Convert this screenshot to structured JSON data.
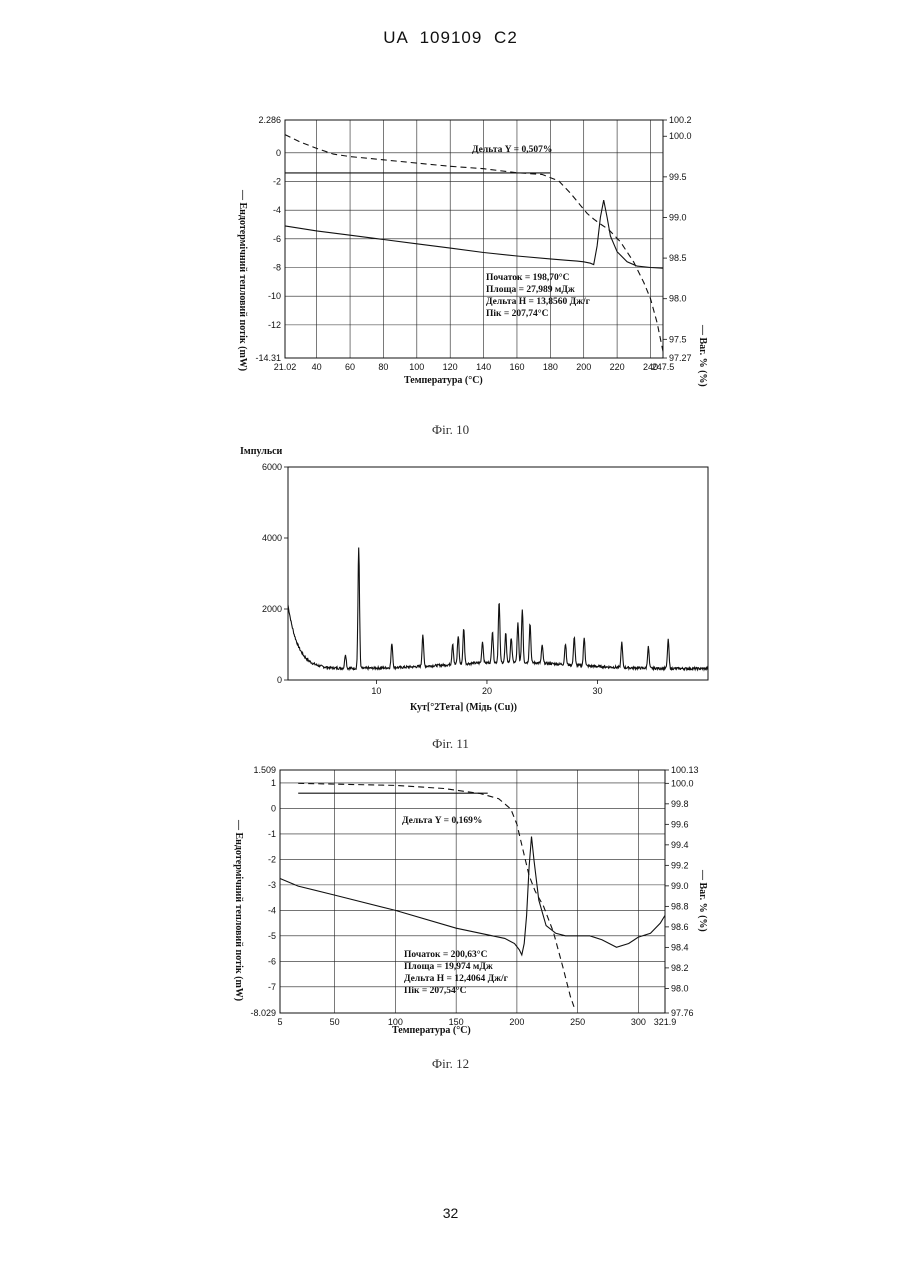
{
  "header": "UA   109109   C2",
  "page_number": "32",
  "figures": [
    {
      "caption": "Фіг. 10",
      "y_left_label": "—  Ендотермічний тепловий потік (mW)",
      "y_right_label": "—  Ваг. % (%)",
      "x_label": "Температура (°C)",
      "delta_label": "Дельта Y = 0,507%",
      "annotation": [
        "Початок = 198,70°C",
        "Площа = 27,989 мДж",
        "Дельта H = 13,8560 Дж/г",
        "Пік = 207,74°C"
      ]
    },
    {
      "caption": "Фіг. 11",
      "y_label": "Імпульси",
      "x_label": "Кут[°2Тета] (Мідь (Cu))"
    },
    {
      "caption": "Фіг. 12",
      "y_left_label": "—  Ендотермічний тепловий потік (mW)",
      "y_right_label": "—  Ваг. % (%)",
      "x_label": "Температура (°C)",
      "delta_label": "Дельта Y = 0,169%",
      "annotation": [
        "Початок = 200,63°C",
        "Площа = 19,974 мДж",
        "Дельта H = 12,4064 Дж/г",
        "Пік = 207,54°C"
      ]
    }
  ],
  "chart_data": [
    {
      "type": "line",
      "x_ticks": [
        "21.02",
        "40",
        "60",
        "80",
        "100",
        "120",
        "140",
        "160",
        "180",
        "200",
        "220",
        "240",
        "247.5"
      ],
      "y_left_ticks": [
        "2.286",
        "0",
        "-2",
        "-4",
        "-6",
        "-8",
        "-10",
        "-12",
        "-14.31"
      ],
      "y_right_ticks": [
        "100.2",
        "100.0",
        "99.5",
        "99.0",
        "98.5",
        "98.0",
        "97.5",
        "97.27"
      ],
      "xlim": [
        21.02,
        247.5
      ],
      "ylim_left": [
        -14.31,
        2.286
      ],
      "ylim_right": [
        97.27,
        100.2
      ],
      "series": [
        {
          "name": "Ендотермічний тепловий потік",
          "x": [
            21.02,
            40,
            60,
            80,
            100,
            120,
            140,
            160,
            180,
            190,
            196,
            200,
            204,
            206,
            208,
            210,
            212,
            214,
            216,
            220,
            226,
            232,
            240,
            247.5
          ],
          "y": [
            -5.1,
            -5.45,
            -5.75,
            -6.05,
            -6.35,
            -6.65,
            -6.95,
            -7.2,
            -7.4,
            -7.5,
            -7.55,
            -7.6,
            -7.7,
            -7.8,
            -6.5,
            -4.5,
            -3.3,
            -4.5,
            -5.8,
            -6.9,
            -7.6,
            -7.9,
            -8.0,
            -8.05
          ]
        },
        {
          "name": "Ваг. %",
          "x": [
            21.02,
            30,
            40,
            50,
            60,
            80,
            100,
            120,
            140,
            160,
            175,
            185,
            192,
            198,
            202,
            206,
            210,
            215,
            222,
            230,
            236,
            240,
            244,
            247.5
          ],
          "y": [
            100.02,
            99.93,
            99.85,
            99.78,
            99.75,
            99.71,
            99.67,
            99.63,
            99.6,
            99.55,
            99.53,
            99.45,
            99.3,
            99.15,
            99.05,
            98.98,
            98.92,
            98.85,
            98.7,
            98.45,
            98.2,
            98.0,
            97.7,
            97.35
          ]
        }
      ],
      "step_line": {
        "x": [
          21.02,
          180
        ],
        "y": [
          -1.4,
          -1.4
        ]
      }
    },
    {
      "type": "line",
      "x_ticks": [
        "10",
        "20",
        "30"
      ],
      "y_ticks": [
        "0",
        "2000",
        "4000",
        "6000"
      ],
      "xlim": [
        2,
        40
      ],
      "ylim": [
        0,
        6000
      ],
      "peaks": [
        {
          "x": 7.2,
          "h": 400
        },
        {
          "x": 8.4,
          "h": 3400
        },
        {
          "x": 11.4,
          "h": 700
        },
        {
          "x": 14.2,
          "h": 900
        },
        {
          "x": 16.9,
          "h": 600
        },
        {
          "x": 17.4,
          "h": 800
        },
        {
          "x": 17.9,
          "h": 1000
        },
        {
          "x": 19.6,
          "h": 600
        },
        {
          "x": 20.5,
          "h": 900
        },
        {
          "x": 21.1,
          "h": 1700
        },
        {
          "x": 21.7,
          "h": 800
        },
        {
          "x": 22.2,
          "h": 700
        },
        {
          "x": 22.8,
          "h": 1100
        },
        {
          "x": 23.2,
          "h": 1500
        },
        {
          "x": 23.9,
          "h": 1100
        },
        {
          "x": 25.0,
          "h": 500
        },
        {
          "x": 27.1,
          "h": 600
        },
        {
          "x": 27.9,
          "h": 800
        },
        {
          "x": 28.8,
          "h": 800
        },
        {
          "x": 32.2,
          "h": 700
        },
        {
          "x": 34.6,
          "h": 600
        },
        {
          "x": 36.4,
          "h": 800
        }
      ]
    },
    {
      "type": "line",
      "x_ticks": [
        "5",
        "50",
        "100",
        "150",
        "200",
        "250",
        "300",
        "321.9"
      ],
      "y_left_ticks": [
        "1.509",
        "1",
        "0",
        "-1",
        "-2",
        "-3",
        "-4",
        "-5",
        "-6",
        "-7",
        "-8.029"
      ],
      "y_right_ticks": [
        "100.13",
        "100.0",
        "99.8",
        "99.6",
        "99.4",
        "99.2",
        "99.0",
        "98.8",
        "98.6",
        "98.4",
        "98.2",
        "98.0",
        "97.76"
      ],
      "xlim": [
        5,
        321.9
      ],
      "ylim_left": [
        -8.029,
        1.509
      ],
      "ylim_right": [
        97.76,
        100.13
      ],
      "series": [
        {
          "name": "Ендотермічний тепловий потік",
          "x": [
            5,
            20,
            50,
            100,
            150,
            190,
            198,
            202,
            204,
            206,
            208,
            210,
            212,
            214,
            218,
            224,
            232,
            240,
            250,
            260,
            270,
            282,
            292,
            300,
            310,
            318,
            321.9
          ],
          "y": [
            -2.75,
            -3.05,
            -3.4,
            -4.0,
            -4.7,
            -5.1,
            -5.3,
            -5.55,
            -5.75,
            -5.3,
            -4.2,
            -2.3,
            -1.1,
            -2.0,
            -3.6,
            -4.6,
            -4.9,
            -5.0,
            -5.0,
            -5.0,
            -5.15,
            -5.45,
            -5.3,
            -5.05,
            -4.9,
            -4.5,
            -4.2
          ]
        },
        {
          "name": "Ваг. %",
          "x": [
            20,
            60,
            100,
            140,
            170,
            185,
            195,
            200,
            205,
            210,
            215,
            222,
            230,
            238,
            244,
            247
          ],
          "y": [
            100.0,
            99.99,
            99.98,
            99.95,
            99.9,
            99.85,
            99.75,
            99.6,
            99.35,
            99.1,
            98.95,
            98.8,
            98.55,
            98.2,
            97.92,
            97.82
          ]
        }
      ],
      "step_line": {
        "x": [
          20,
          176
        ],
        "y": [
          0.6,
          0.6
        ]
      }
    }
  ]
}
